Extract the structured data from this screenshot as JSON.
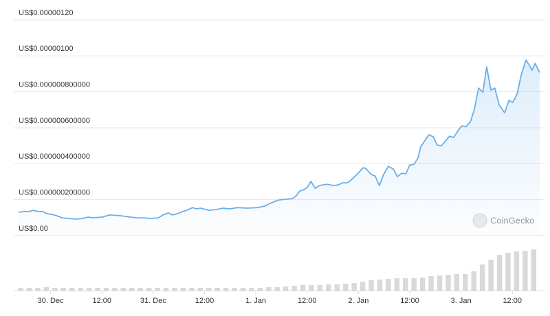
{
  "chart_data": {
    "type": "line",
    "watermark": "CoinGecko",
    "xlim": [
      -7.5,
      114.4
    ],
    "xticks": [
      {
        "value": 0,
        "label": "30. Dec"
      },
      {
        "value": 12,
        "label": "12:00"
      },
      {
        "value": 24,
        "label": "31. Dec"
      },
      {
        "value": 36,
        "label": "12:00"
      },
      {
        "value": 48,
        "label": "1. Jan"
      },
      {
        "value": 60,
        "label": "12:00"
      },
      {
        "value": 72,
        "label": "2. Jan"
      },
      {
        "value": 84,
        "label": "12:00"
      },
      {
        "value": 96,
        "label": "3. Jan"
      },
      {
        "value": 108,
        "label": "12:00"
      }
    ],
    "ylim": [
      0,
      1.2e-06
    ],
    "yticks": [
      {
        "value": 0,
        "label": "US$0.00"
      },
      {
        "value": 2e-07,
        "label": "US$0.000000200000"
      },
      {
        "value": 4e-07,
        "label": "US$0.000000400000"
      },
      {
        "value": 6e-07,
        "label": "US$0.000000600000"
      },
      {
        "value": 8e-07,
        "label": "US$0.000000800000"
      },
      {
        "value": 1e-06,
        "label": "US$0.00000100"
      },
      {
        "value": 1.2e-06,
        "label": "US$0.00000120"
      }
    ],
    "y2lim": [
      0,
      70
    ],
    "grid": true,
    "series": [
      {
        "type": "line",
        "color": "#6aaee8",
        "x": [
          -7.5,
          -6.2,
          -5.0,
          -4.1,
          -3.0,
          -1.8,
          -0.9,
          0.3,
          1.4,
          2.7,
          4.3,
          5.9,
          7.5,
          8.8,
          9.9,
          12.0,
          13.9,
          16.3,
          18.7,
          20.3,
          21.9,
          23.2,
          25.2,
          26.5,
          27.6,
          28.4,
          29.7,
          30.8,
          31.9,
          33.2,
          34.1,
          35.1,
          36.4,
          37.1,
          38.7,
          40.3,
          42.0,
          43.6,
          46.0,
          48.4,
          50.0,
          51.7,
          53.3,
          54.9,
          56.5,
          57.3,
          58.3,
          59.3,
          60.1,
          60.9,
          61.9,
          62.9,
          64.6,
          66.2,
          67.3,
          68.3,
          69.4,
          70.5,
          71.8,
          73.1,
          73.7,
          75.0,
          75.9,
          76.9,
          77.9,
          79.0,
          80.2,
          81.1,
          82.1,
          83.1,
          84.0,
          85.0,
          85.9,
          86.6,
          87.6,
          88.5,
          89.5,
          90.4,
          91.4,
          92.4,
          93.3,
          94.3,
          95.3,
          96.2,
          97.2,
          98.2,
          99.1,
          100.1,
          101.1,
          102.0,
          103.0,
          103.9,
          104.9,
          106.2,
          107.2,
          108.1,
          109.1,
          110.1,
          111.2,
          112.0,
          112.6,
          113.3,
          114.4
        ],
        "values": [
          1.3e-07,
          1.34e-07,
          1.34e-07,
          1.41e-07,
          1.34e-07,
          1.34e-07,
          1.22e-07,
          1.18e-07,
          1.11e-07,
          9.9e-08,
          9.5e-08,
          9.2e-08,
          9.5e-08,
          1.03e-07,
          9.9e-08,
          1.03e-07,
          1.15e-07,
          1.11e-07,
          1.03e-07,
          9.9e-08,
          9.9e-08,
          9.5e-08,
          9.9e-08,
          1.18e-07,
          1.26e-07,
          1.15e-07,
          1.22e-07,
          1.34e-07,
          1.41e-07,
          1.56e-07,
          1.49e-07,
          1.53e-07,
          1.45e-07,
          1.41e-07,
          1.45e-07,
          1.53e-07,
          1.49e-07,
          1.56e-07,
          1.53e-07,
          1.56e-07,
          1.64e-07,
          1.83e-07,
          1.98e-07,
          2.02e-07,
          2.06e-07,
          2.18e-07,
          2.48e-07,
          2.56e-07,
          2.71e-07,
          3.02e-07,
          2.63e-07,
          2.79e-07,
          2.86e-07,
          2.79e-07,
          2.82e-07,
          2.94e-07,
          2.94e-07,
          3.13e-07,
          3.44e-07,
          3.78e-07,
          3.74e-07,
          3.4e-07,
          3.32e-07,
          2.79e-07,
          3.4e-07,
          3.86e-07,
          3.7e-07,
          3.28e-07,
          3.47e-07,
          3.44e-07,
          3.93e-07,
          3.97e-07,
          4.31e-07,
          4.96e-07,
          5.31e-07,
          5.61e-07,
          5.5e-07,
          5.04e-07,
          5e-07,
          5.27e-07,
          5.53e-07,
          5.46e-07,
          5.84e-07,
          6.11e-07,
          6.07e-07,
          6.34e-07,
          7.02e-07,
          8.21e-07,
          7.98e-07,
          9.39e-07,
          8.09e-07,
          8.21e-07,
          7.29e-07,
          6.83e-07,
          7.52e-07,
          7.41e-07,
          7.86e-07,
          8.97e-07,
          9.77e-07,
          9.47e-07,
          9.2e-07,
          9.58e-07,
          9.08e-07
        ]
      },
      {
        "type": "bar",
        "axis": "y2",
        "color": "#d9d9d9",
        "x": [
          -7,
          -5,
          -3,
          -1,
          1,
          3,
          5,
          7,
          9,
          11,
          13,
          15,
          17,
          19,
          21,
          23,
          25,
          27,
          29,
          31,
          33,
          35,
          37,
          39,
          41,
          43,
          45,
          47,
          49,
          51,
          53,
          55,
          57,
          59,
          61,
          63,
          65,
          67,
          69,
          71,
          73,
          75,
          77,
          79,
          81,
          83,
          85,
          87,
          89,
          91,
          93,
          95,
          97,
          99,
          101,
          103,
          105,
          107,
          109,
          111,
          113
        ],
        "values": [
          4,
          4,
          4,
          5,
          4,
          4,
          4,
          4,
          4,
          4,
          4,
          4,
          4,
          4,
          4,
          4,
          4,
          4,
          4,
          4,
          4,
          4,
          4,
          4,
          4,
          4,
          4,
          4,
          4,
          5,
          5,
          6,
          7,
          8,
          8,
          8,
          9,
          9,
          10,
          11,
          13,
          15,
          16,
          17,
          18,
          18,
          18,
          19,
          21,
          22,
          23,
          24,
          24,
          28,
          38,
          45,
          52,
          55,
          57,
          58,
          60
        ]
      }
    ]
  }
}
